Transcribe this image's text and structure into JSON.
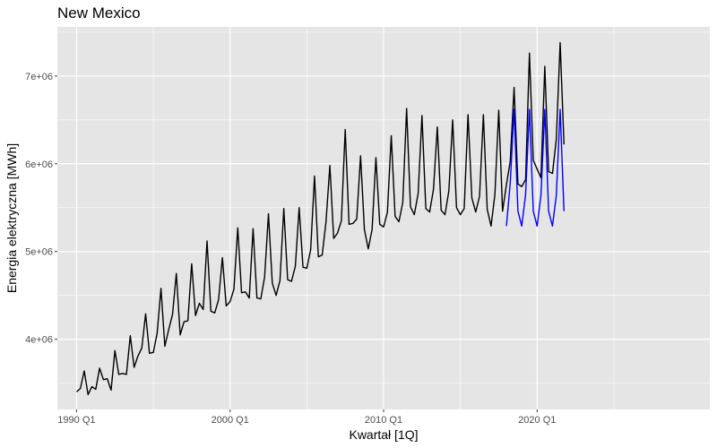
{
  "chart_data": {
    "type": "line",
    "title": "New Mexico",
    "xlabel": "Kwartał [1Q]",
    "ylabel": "Energia elektryczna [MWh]",
    "x_ticks": [
      {
        "label": "1990 Q1",
        "value": 1990.0
      },
      {
        "label": "2000 Q1",
        "value": 2000.0
      },
      {
        "label": "2010 Q1",
        "value": 2010.0
      },
      {
        "label": "2020 Q1",
        "value": 2020.0
      }
    ],
    "y_ticks": [
      {
        "label": "4e+06",
        "value": 4000000
      },
      {
        "label": "5e+06",
        "value": 5000000
      },
      {
        "label": "6e+06",
        "value": 6000000
      },
      {
        "label": "7e+06",
        "value": 7000000
      }
    ],
    "xlim": [
      1988.75,
      2031.25
    ],
    "ylim": [
      3200000,
      7560000
    ],
    "grid": true,
    "colors": {
      "panel": "#e5e5e5",
      "grid": "#ffffff",
      "actual": "#000000",
      "fitted": "#0000ff"
    },
    "series": [
      {
        "color": "#000000",
        "x_start": 1990.0,
        "x_step": 0.25,
        "values": [
          3400000,
          3440000,
          3640000,
          3370000,
          3460000,
          3430000,
          3670000,
          3540000,
          3550000,
          3420000,
          3870000,
          3600000,
          3610000,
          3600000,
          4040000,
          3680000,
          3810000,
          3900000,
          4290000,
          3840000,
          3850000,
          4070000,
          4580000,
          3920000,
          4110000,
          4280000,
          4750000,
          4050000,
          4200000,
          4210000,
          4860000,
          4270000,
          4410000,
          4340000,
          5120000,
          4320000,
          4300000,
          4450000,
          4930000,
          4380000,
          4430000,
          4570000,
          5270000,
          4530000,
          4540000,
          4470000,
          5260000,
          4470000,
          4460000,
          4710000,
          5430000,
          4640000,
          4500000,
          4670000,
          5490000,
          4680000,
          4660000,
          4830000,
          5500000,
          4820000,
          4810000,
          5020000,
          5860000,
          4940000,
          4960000,
          5340000,
          5980000,
          5150000,
          5210000,
          5350000,
          6390000,
          5310000,
          5320000,
          5370000,
          6090000,
          5250000,
          5030000,
          5250000,
          6070000,
          5310000,
          5280000,
          5450000,
          6320000,
          5400000,
          5340000,
          5560000,
          6630000,
          5510000,
          5420000,
          5660000,
          6550000,
          5490000,
          5450000,
          5710000,
          6420000,
          5470000,
          5420000,
          5690000,
          6500000,
          5500000,
          5420000,
          5490000,
          6560000,
          5610000,
          5450000,
          5630000,
          6560000,
          5480000,
          5290000,
          5650000,
          6610000,
          5460000,
          5760000,
          6030000,
          6870000,
          5770000,
          5740000,
          5820000,
          7260000,
          6040000,
          5940000,
          5840000,
          7110000,
          5910000,
          5890000,
          6280000,
          7380000,
          6220000
        ]
      },
      {
        "color": "#0000ff",
        "x_start": 2018.0,
        "x_step": 0.25,
        "values": [
          5290000,
          5780000,
          6620000,
          5460000,
          5290000,
          5650000,
          6620000,
          5460000,
          5290000,
          5640000,
          6620000,
          5460000,
          5290000,
          5640000,
          6620000,
          5460000
        ]
      }
    ]
  }
}
